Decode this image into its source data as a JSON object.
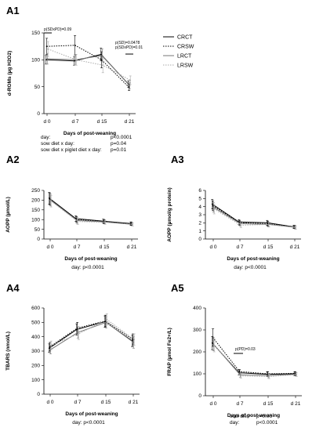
{
  "chart_data": [
    {
      "id": "A1",
      "type": "line",
      "panel_label": "A1",
      "ylabel": "d-ROMs (µg H2O2)",
      "xlabel": "Days of post-weaning",
      "categories": [
        "d 0",
        "d 7",
        "d 15",
        "d 21"
      ],
      "ylim": [
        0,
        150
      ],
      "yticks": [
        0,
        50,
        100,
        150
      ],
      "series": [
        {
          "name": "CRCT",
          "color": "#000000",
          "dash": "solid",
          "values": [
            100,
            98,
            110,
            55
          ],
          "err": [
            8,
            8,
            12,
            6
          ]
        },
        {
          "name": "CRSW",
          "color": "#000000",
          "dash": "dotted",
          "values": [
            125,
            127,
            100,
            49
          ],
          "err": [
            15,
            18,
            15,
            6
          ]
        },
        {
          "name": "LRCT",
          "color": "#777777",
          "dash": "solid",
          "values": [
            102,
            100,
            108,
            52
          ],
          "err": [
            10,
            10,
            12,
            6
          ]
        },
        {
          "name": "LRSW",
          "color": "#aaaaaa",
          "dash": "dotted",
          "values": [
            120,
            100,
            90,
            62
          ],
          "err": [
            14,
            10,
            14,
            8
          ]
        }
      ],
      "legend": [
        "CRCT",
        "CRSW",
        "LRCT",
        "LRSW"
      ],
      "annotations": [
        {
          "text": "p(SDxPD)=0.09",
          "at": 0
        },
        {
          "text": "p(SD)=0.0478",
          "at": 3
        },
        {
          "text": "p(SDxPD)=0.01",
          "at": 3
        }
      ],
      "stats": [
        {
          "label": "day:",
          "value": "p<0.0001"
        },
        {
          "label": "sow diet x day:",
          "value": "p=0.04"
        },
        {
          "label": "sow diet x piglet diet x day:",
          "value": "p=0.01"
        }
      ]
    },
    {
      "id": "A2",
      "type": "line",
      "panel_label": "A2",
      "ylabel": "AOPP (µmol/L)",
      "xlabel": "Days of post-weaning",
      "categories": [
        "d 0",
        "d 7",
        "d 15",
        "d 21"
      ],
      "ylim": [
        0,
        250
      ],
      "yticks": [
        0,
        50,
        100,
        150,
        200,
        250
      ],
      "series": [
        {
          "name": "CRCT",
          "color": "#000000",
          "dash": "solid",
          "values": [
            210,
            105,
            92,
            80
          ],
          "err": [
            30,
            15,
            10,
            8
          ]
        },
        {
          "name": "CRSW",
          "color": "#000000",
          "dash": "dotted",
          "values": [
            205,
            100,
            90,
            78
          ],
          "err": [
            30,
            15,
            10,
            8
          ]
        },
        {
          "name": "LRCT",
          "color": "#777777",
          "dash": "solid",
          "values": [
            200,
            95,
            88,
            76
          ],
          "err": [
            30,
            15,
            10,
            8
          ]
        },
        {
          "name": "LRSW",
          "color": "#aaaaaa",
          "dash": "dotted",
          "values": [
            195,
            90,
            86,
            75
          ],
          "err": [
            30,
            15,
            10,
            8
          ]
        }
      ],
      "stats": [
        {
          "label": "day:",
          "value": "p<0.0001"
        }
      ]
    },
    {
      "id": "A3",
      "type": "line",
      "panel_label": "A3",
      "ylabel": "AOPP (µmol/g protein)",
      "xlabel": "Days of post-weaning",
      "categories": [
        "d 0",
        "d 7",
        "d 15",
        "d 21"
      ],
      "ylim": [
        0,
        6
      ],
      "yticks": [
        0,
        1,
        2,
        3,
        4,
        5,
        6
      ],
      "series": [
        {
          "name": "CRCT",
          "color": "#000000",
          "dash": "solid",
          "values": [
            4.3,
            2.1,
            2.0,
            1.5
          ],
          "err": [
            0.6,
            0.3,
            0.3,
            0.2
          ]
        },
        {
          "name": "CRSW",
          "color": "#000000",
          "dash": "dotted",
          "values": [
            4.1,
            2.0,
            1.9,
            1.5
          ],
          "err": [
            0.6,
            0.3,
            0.3,
            0.2
          ]
        },
        {
          "name": "LRCT",
          "color": "#777777",
          "dash": "solid",
          "values": [
            3.9,
            1.9,
            1.8,
            1.45
          ],
          "err": [
            0.6,
            0.3,
            0.3,
            0.2
          ]
        },
        {
          "name": "LRSW",
          "color": "#aaaaaa",
          "dash": "dotted",
          "values": [
            3.7,
            1.7,
            1.8,
            1.4
          ],
          "err": [
            0.6,
            0.3,
            0.3,
            0.2
          ]
        }
      ],
      "stats": [
        {
          "label": "day:",
          "value": "p<0.0001"
        }
      ]
    },
    {
      "id": "A4",
      "type": "line",
      "panel_label": "A4",
      "ylabel": "TBARS (nmol/L)",
      "xlabel": "Days of post-weaning",
      "categories": [
        "d 0",
        "d 7",
        "d 15",
        "d 21"
      ],
      "ylim": [
        0,
        600
      ],
      "yticks": [
        0,
        100,
        200,
        300,
        400,
        500,
        600
      ],
      "series": [
        {
          "name": "CRCT",
          "color": "#000000",
          "dash": "solid",
          "values": [
            320,
            450,
            505,
            370
          ],
          "err": [
            30,
            40,
            40,
            40
          ]
        },
        {
          "name": "CRSW",
          "color": "#000000",
          "dash": "dotted",
          "values": [
            330,
            460,
            510,
            380
          ],
          "err": [
            30,
            40,
            40,
            40
          ]
        },
        {
          "name": "LRCT",
          "color": "#777777",
          "dash": "solid",
          "values": [
            310,
            430,
            500,
            360
          ],
          "err": [
            30,
            40,
            40,
            40
          ]
        },
        {
          "name": "LRSW",
          "color": "#aaaaaa",
          "dash": "dotted",
          "values": [
            340,
            420,
            520,
            380
          ],
          "err": [
            30,
            40,
            40,
            40
          ]
        }
      ],
      "stats": [
        {
          "label": "day:",
          "value": "p<0.0001"
        }
      ]
    },
    {
      "id": "A5",
      "type": "line",
      "panel_label": "A5",
      "ylabel": "FRAP (µmol Fe2+/L)",
      "xlabel": "Days of post-weaning",
      "categories": [
        "d 0",
        "d 7",
        "d 15",
        "d 21"
      ],
      "ylim": [
        0,
        400
      ],
      "yticks": [
        0,
        100,
        200,
        300,
        400
      ],
      "series": [
        {
          "name": "CRCT",
          "color": "#000000",
          "dash": "solid",
          "values": [
            240,
            105,
            98,
            100
          ],
          "err": [
            30,
            10,
            10,
            8
          ]
        },
        {
          "name": "CRSW",
          "color": "#000000",
          "dash": "dotted",
          "values": [
            265,
            110,
            100,
            102
          ],
          "err": [
            40,
            10,
            10,
            8
          ]
        },
        {
          "name": "LRCT",
          "color": "#777777",
          "dash": "solid",
          "values": [
            235,
            95,
            92,
            98
          ],
          "err": [
            30,
            10,
            10,
            8
          ]
        },
        {
          "name": "LRSW",
          "color": "#aaaaaa",
          "dash": "dotted",
          "values": [
            230,
            90,
            88,
            96
          ],
          "err": [
            30,
            10,
            10,
            8
          ]
        }
      ],
      "annotations": [
        {
          "text": "p(PD)=0.03",
          "at": 1
        }
      ],
      "stats": [
        {
          "label": "sow diet:",
          "value": "p=0.06"
        },
        {
          "label": "day:",
          "value": "p<0.0001"
        }
      ]
    }
  ]
}
